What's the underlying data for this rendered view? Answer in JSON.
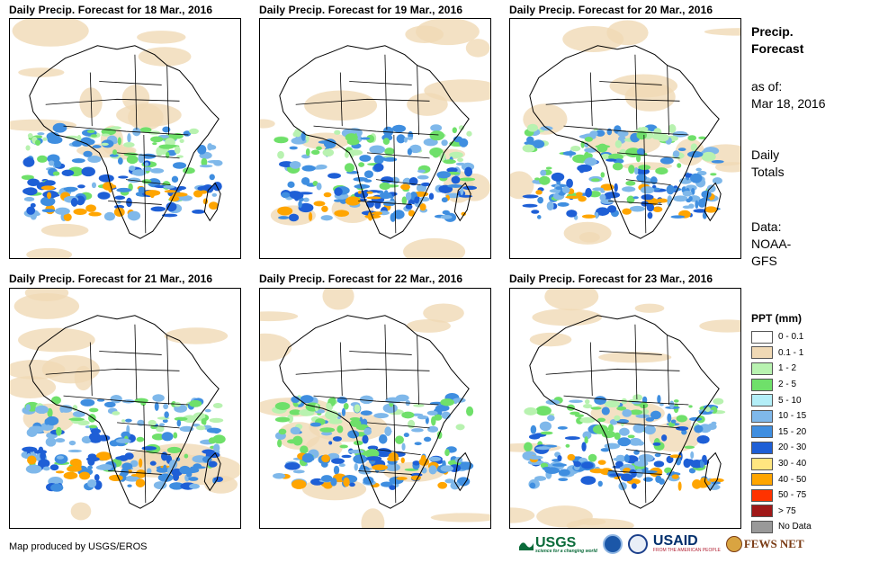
{
  "panels": [
    {
      "title": "Daily Precip. Forecast for 18 Mar., 2016"
    },
    {
      "title": "Daily Precip. Forecast for 19 Mar., 2016"
    },
    {
      "title": "Daily Precip. Forecast for 20 Mar., 2016"
    },
    {
      "title": "Daily Precip. Forecast for 21 Mar., 2016"
    },
    {
      "title": "Daily Precip. Forecast for 22 Mar., 2016"
    },
    {
      "title": "Daily Precip. Forecast for 23 Mar., 2016"
    }
  ],
  "side": {
    "title_line1": "Precip.",
    "title_line2": "Forecast",
    "asof_line1": "as of:",
    "asof_line2": "Mar 18, 2016",
    "totals_line1": "Daily",
    "totals_line2": "Totals",
    "data_line1": "Data:",
    "data_line2": "NOAA-",
    "data_line3": "GFS"
  },
  "legend": {
    "title": "PPT (mm)",
    "items": [
      {
        "label": "0 - 0.1",
        "color": "#ffffff"
      },
      {
        "label": "0.1 - 1",
        "color": "#f0d9b5"
      },
      {
        "label": "1 - 2",
        "color": "#b8f2b0"
      },
      {
        "label": "2 - 5",
        "color": "#6fe06a"
      },
      {
        "label": "5 - 10",
        "color": "#b3eef7"
      },
      {
        "label": "10 - 15",
        "color": "#7fb8ea"
      },
      {
        "label": "15 - 20",
        "color": "#3f8ee0"
      },
      {
        "label": "20 - 30",
        "color": "#1e5fd6"
      },
      {
        "label": "30 - 40",
        "color": "#ffe680"
      },
      {
        "label": "40 - 50",
        "color": "#ffa500"
      },
      {
        "label": "50 - 75",
        "color": "#ff3300"
      },
      {
        "label": "> 75",
        "color": "#a01818"
      },
      {
        "label": "No Data",
        "color": "#999999"
      }
    ]
  },
  "footer": {
    "credit": "Map produced by USGS/EROS",
    "logo_usgs": "USGS",
    "logo_usgs_tagline": "science for a changing world",
    "logo_usaid": "USAID",
    "logo_usaid_tagline": "FROM THE AMERICAN PEOPLE",
    "logo_fews": "FEWS NET"
  }
}
